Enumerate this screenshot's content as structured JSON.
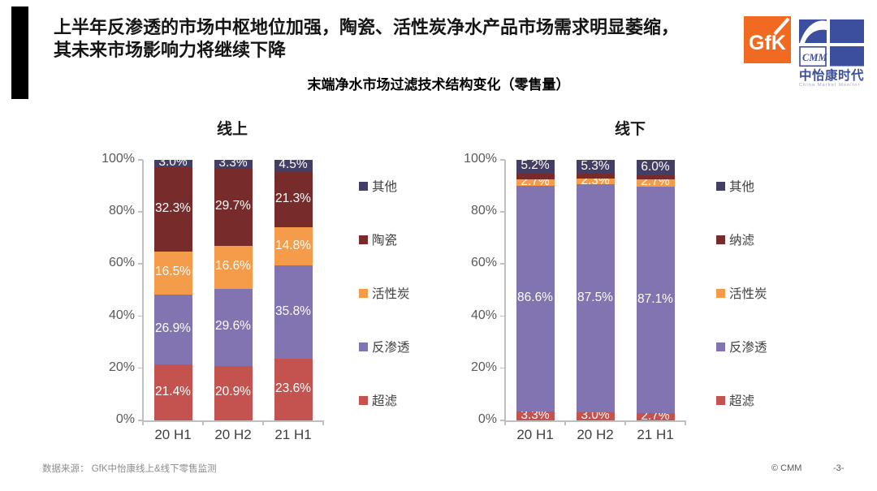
{
  "slide": {
    "title_line1": "上半年反渗透的市场中枢地位加强，陶瓷、活性炭净水产品市场需求明显萎缩，",
    "title_line2": "其未来市场影响力将继续下降",
    "subtitle": "末端净水市场过滤技术结构变化（零售量）",
    "footer_source": "数据来源：  GfK中怡康线上&线下零售监测",
    "footer_copyright": "© CMM",
    "footer_page": "-3-"
  },
  "logos": {
    "gfk_text": "GfK",
    "gfk_color": "#F16A21",
    "cmm_acronym": "CMM",
    "cmm_name": "中怡康时代",
    "cmm_caption": "China Market Monitor",
    "cmm_color": "#3C4E9E"
  },
  "colors": {
    "ultrafiltration_red": "#C4534F",
    "reverse_osmosis_purple": "#8174B1",
    "activated_carbon_orange": "#F49C49",
    "ceramic_maroon": "#772B2A",
    "other_navy": "#433E63",
    "axis_gray": "#BFBFBF"
  },
  "chart_data": [
    {
      "type": "bar",
      "stacked": true,
      "title": "线上",
      "categories": [
        "20 H1",
        "20 H2",
        "21 H1"
      ],
      "ylim": [
        0,
        100
      ],
      "yticks": [
        "0%",
        "20%",
        "40%",
        "60%",
        "80%",
        "100%"
      ],
      "grid": false,
      "legend_position": "right",
      "series": [
        {
          "name": "超滤",
          "color": "#C4534F",
          "values": [
            21.4,
            20.9,
            23.6
          ],
          "labeled": true
        },
        {
          "name": "反渗透",
          "color": "#8174B1",
          "values": [
            26.9,
            29.6,
            35.8
          ],
          "labeled": true
        },
        {
          "name": "活性炭",
          "color": "#F49C49",
          "values": [
            16.5,
            16.6,
            14.8
          ],
          "labeled": true
        },
        {
          "name": "陶瓷",
          "color": "#772B2A",
          "values": [
            32.3,
            29.7,
            21.3
          ],
          "labeled": true
        },
        {
          "name": "其他",
          "color": "#433E63",
          "values": [
            3.0,
            3.3,
            4.5
          ],
          "labeled": true
        }
      ],
      "legend": [
        "其他",
        "陶瓷",
        "活性炭",
        "反渗透",
        "超滤"
      ]
    },
    {
      "type": "bar",
      "stacked": true,
      "title": "线下",
      "categories": [
        "20 H1",
        "20 H2",
        "21 H1"
      ],
      "ylim": [
        0,
        100
      ],
      "yticks": [
        "0%",
        "20%",
        "40%",
        "60%",
        "80%",
        "100%"
      ],
      "grid": false,
      "legend_position": "right",
      "series": [
        {
          "name": "超滤",
          "color": "#C4534F",
          "values": [
            3.3,
            3.0,
            2.7
          ],
          "labeled": true
        },
        {
          "name": "反渗透",
          "color": "#8174B1",
          "values": [
            86.6,
            87.5,
            87.1
          ],
          "labeled": true
        },
        {
          "name": "活性炭",
          "color": "#F49C49",
          "values": [
            2.7,
            2.3,
            2.7
          ],
          "labeled": true
        },
        {
          "name": "纳滤",
          "color": "#772B2A",
          "values": [
            2.2,
            1.9,
            1.5
          ],
          "labeled": false
        },
        {
          "name": "其他",
          "color": "#433E63",
          "values": [
            5.2,
            5.3,
            6.0
          ],
          "labeled": true
        }
      ],
      "legend": [
        "其他",
        "纳滤",
        "活性炭",
        "反渗透",
        "超滤"
      ]
    }
  ]
}
